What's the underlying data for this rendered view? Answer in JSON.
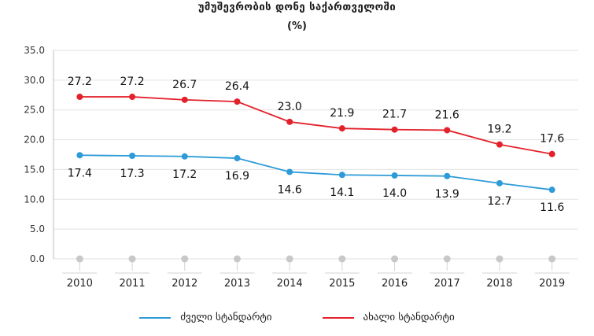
{
  "chart_data": {
    "type": "line",
    "title": "უმუშევრობის დონე საქართველოში",
    "subtitle": "(%)",
    "categories": [
      "2010",
      "2011",
      "2012",
      "2013",
      "2014",
      "2015",
      "2016",
      "2017",
      "2018",
      "2019"
    ],
    "ylim": [
      0,
      35
    ],
    "yticks": [
      "35.0",
      "30.0",
      "25.0",
      "20.0",
      "15.0",
      "10.0",
      "5.0",
      "0.0"
    ],
    "ytick_values": [
      35,
      30,
      25,
      20,
      15,
      10,
      5,
      0
    ],
    "grid": true,
    "legend_position": "bottom",
    "series": [
      {
        "name": "ძველი სტანდარტი",
        "color": "#2d9bd8",
        "values": [
          17.4,
          17.3,
          17.2,
          16.9,
          14.6,
          14.1,
          14.0,
          13.9,
          12.7,
          11.6
        ],
        "labels": [
          "17.4",
          "17.3",
          "17.2",
          "16.9",
          "14.6",
          "14.1",
          "14.0",
          "13.9",
          "12.7",
          "11.6"
        ]
      },
      {
        "name": "ახალი სტანდარტი",
        "color": "#e3212b",
        "values": [
          27.2,
          27.2,
          26.7,
          26.4,
          23.0,
          21.9,
          21.7,
          21.6,
          19.2,
          17.6
        ],
        "labels": [
          "27.2",
          "27.2",
          "26.7",
          "26.4",
          "23.0",
          "21.9",
          "21.7",
          "21.6",
          "19.2",
          "17.6"
        ]
      }
    ]
  }
}
